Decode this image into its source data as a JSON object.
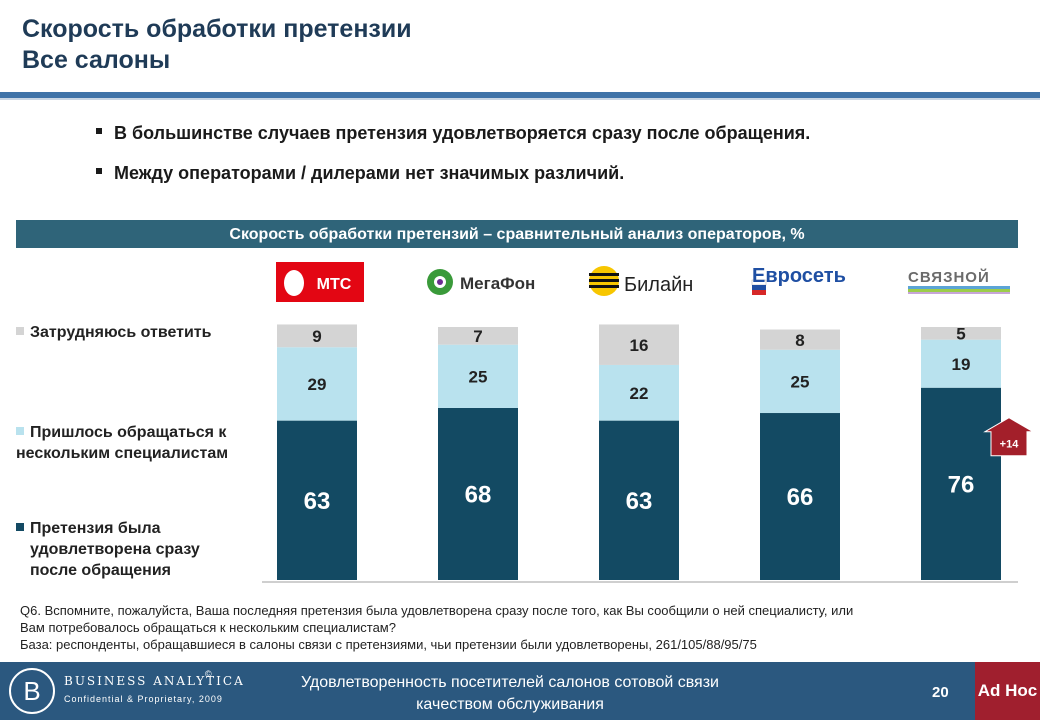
{
  "title": {
    "line1": "Скорость обработки претензии",
    "line2": "Все салоны"
  },
  "bullets": [
    "В большинстве случаев претензия удовлетворяется сразу после обращения.",
    "Между операторами / дилерами нет значимых различий."
  ],
  "chart_header": "Скорость обработки претензий – сравнительный анализ операторов, %",
  "logos": {
    "mts": "МТС",
    "megafon": "МегаФон",
    "beeline": "Билайн",
    "euroset": "Евросеть",
    "svyaznoy": "СВЯЗНОЙ"
  },
  "legend": [
    {
      "label": "Затрудняюсь ответить",
      "color": "#d4d4d4"
    },
    {
      "label_line1": "Пришлось обращаться к",
      "label_line2": "нескольким специалистам",
      "color": "#b9e2ee"
    },
    {
      "label_line1": "Претензия была",
      "label_line2": "удовлетворена сразу",
      "label_line3": "после обращения",
      "color": "#134a63"
    }
  ],
  "chart_data": {
    "type": "bar",
    "stacked": true,
    "categories": [
      "МТС",
      "МегаФон",
      "Билайн",
      "Евросеть",
      "Связной"
    ],
    "series": [
      {
        "name": "Претензия была удовлетворена сразу после обращения",
        "values": [
          63,
          68,
          63,
          66,
          76
        ],
        "color": "#134a63"
      },
      {
        "name": "Пришлось обращаться к нескольким специалистам",
        "values": [
          29,
          25,
          22,
          25,
          19
        ],
        "color": "#b9e2ee"
      },
      {
        "name": "Затрудняюсь ответить",
        "values": [
          9,
          7,
          16,
          8,
          5
        ],
        "color": "#d4d4d4"
      }
    ],
    "annotation": {
      "category": "Связной",
      "text": "+14"
    }
  },
  "footnote": {
    "line1": "Q6. Вспомните, пожалуйста, Ваша последняя претензия была удовлетворена сразу после того, как Вы сообщили о ней специалисту, или",
    "line2": "Вам потребовалось обращаться к нескольким специалистам?",
    "line3": "База:  респонденты, обращавшиеся в салоны связи с претензиями, чьи претензии были удовлетворены, 261/105/88/95/75"
  },
  "footer": {
    "brand": "BUSINESS ANALYTICA",
    "brand_copyright": "©",
    "brand_sub": "Confidential & Proprietary, 2009",
    "center_line1": "Удовлетворенность посетителей салонов сотовой связи",
    "center_line2": "качеством обслуживания",
    "page": "20",
    "tag": "Ad Hoc"
  }
}
